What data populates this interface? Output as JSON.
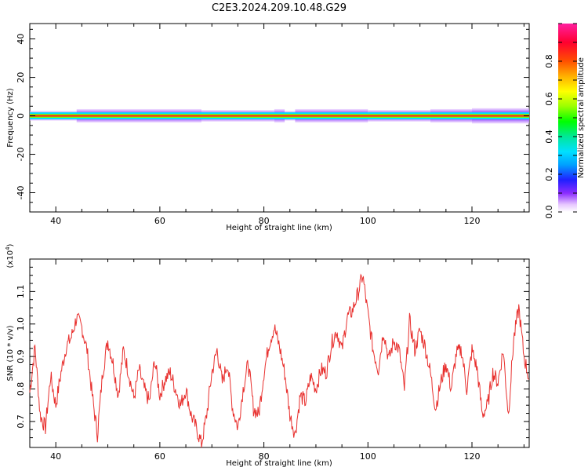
{
  "title": "C2E3.2024.209.10.48.G29",
  "chart_data": [
    {
      "type": "heatmap",
      "xlabel": "Height of straight line (km)",
      "ylabel": "Frequency (Hz)",
      "xlim": [
        35,
        131
      ],
      "ylim": [
        -50,
        48
      ],
      "xticks": [
        "40",
        "60",
        "80",
        "100",
        "120"
      ],
      "yticks": [
        "40",
        "20",
        "0",
        "-20",
        "-40"
      ],
      "colorbar": {
        "label": "Normalized spectral amplitude",
        "range": [
          0.0,
          1.0
        ],
        "ticks": [
          "0.0",
          "0.2",
          "0.4",
          "0.6",
          "0.8"
        ],
        "colormap": "gist_ncar"
      },
      "band": {
        "center_hz": 0,
        "strong_halfwidth_hz": 1,
        "weak_halfwidth_hz": 3,
        "spread_edges_km": [
          35,
          44,
          68,
          82,
          84,
          86,
          100,
          112,
          120,
          131
        ],
        "spread_halfwidth_hz": [
          2.5,
          3.5,
          3,
          3.5,
          2.5,
          3.5,
          3,
          3.5,
          4,
          5
        ]
      },
      "grid": false
    },
    {
      "type": "line",
      "xlabel": "Height of straight line (km)",
      "ylabel": "SNR (10 * v/v)",
      "yscale_label": "(x10",
      "yscale_exp": "4",
      "yscale_close": ")",
      "xlim": [
        35,
        131
      ],
      "ylim": [
        0.62,
        1.2
      ],
      "xticks": [
        "40",
        "60",
        "80",
        "100",
        "120"
      ],
      "yticks": [
        "0.7",
        "0.8",
        "0.9",
        "1.0",
        "1.1"
      ],
      "color": "#e8302e",
      "series": [
        {
          "x": [
            35,
            36,
            37,
            38,
            39,
            40,
            41,
            42,
            43,
            44,
            45,
            46,
            47,
            48,
            49,
            50,
            51,
            52,
            53,
            54,
            55,
            56,
            57,
            58,
            59,
            60,
            61,
            62,
            63,
            64,
            65,
            66,
            67,
            68,
            69,
            70,
            71,
            72,
            73,
            74,
            75,
            76,
            77,
            78,
            79,
            80,
            81,
            82,
            83,
            84,
            85,
            86,
            87,
            88,
            89,
            90,
            91,
            92,
            93,
            94,
            95,
            96,
            97,
            98,
            99,
            100,
            101,
            102,
            103,
            104,
            105,
            106,
            107,
            108,
            109,
            110,
            111,
            112,
            113,
            114,
            115,
            116,
            117,
            118,
            119,
            120,
            121,
            122,
            123,
            124,
            125,
            126,
            127,
            128,
            129,
            130,
            131
          ],
          "y": [
            0.79,
            0.93,
            0.72,
            0.68,
            0.84,
            0.75,
            0.85,
            0.93,
            0.96,
            1.02,
            0.99,
            0.92,
            0.78,
            0.66,
            0.85,
            0.95,
            0.88,
            0.78,
            0.92,
            0.85,
            0.77,
            0.86,
            0.8,
            0.76,
            0.89,
            0.78,
            0.83,
            0.85,
            0.8,
            0.75,
            0.8,
            0.72,
            0.68,
            0.63,
            0.72,
            0.85,
            0.92,
            0.82,
            0.88,
            0.74,
            0.68,
            0.8,
            0.88,
            0.74,
            0.72,
            0.85,
            0.94,
            0.99,
            0.93,
            0.85,
            0.72,
            0.66,
            0.78,
            0.76,
            0.84,
            0.8,
            0.86,
            0.85,
            0.94,
            0.98,
            0.92,
            1.02,
            1.04,
            1.09,
            1.15,
            1.03,
            0.92,
            0.86,
            0.98,
            0.89,
            0.95,
            0.92,
            0.8,
            1.01,
            0.92,
            0.98,
            0.93,
            0.85,
            0.74,
            0.82,
            0.88,
            0.8,
            0.91,
            0.92,
            0.8,
            0.92,
            0.86,
            0.72,
            0.75,
            0.85,
            0.82,
            0.92,
            0.72,
            0.95,
            1.05,
            0.9,
            0.83
          ]
        }
      ]
    }
  ]
}
